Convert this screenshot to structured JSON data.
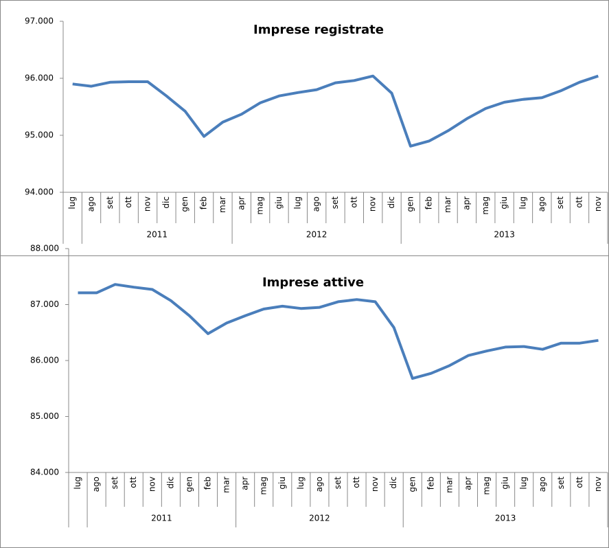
{
  "chart_data": [
    {
      "type": "line",
      "title": "Imprese registrate",
      "color": "#4a7ebb",
      "groups": [
        {
          "label": null,
          "categories": [
            "lug"
          ]
        },
        {
          "label": "2011",
          "categories": [
            "ago",
            "set",
            "ott",
            "nov",
            "dic",
            "gen",
            "feb",
            "mar"
          ]
        },
        {
          "label": "2012",
          "categories": [
            "apr",
            "mag",
            "giu",
            "lug",
            "ago",
            "set",
            "ott",
            "nov",
            "dic"
          ]
        },
        {
          "label": "2013",
          "categories": [
            "gen",
            "feb",
            "mar",
            "apr",
            "mag",
            "giu",
            "lug",
            "ago",
            "set",
            "ott",
            "nov"
          ]
        }
      ],
      "values": [
        95900,
        95860,
        95930,
        95940,
        95940,
        95690,
        95420,
        94980,
        95230,
        95370,
        95570,
        95690,
        95750,
        95800,
        95920,
        95960,
        96040,
        95740,
        94810,
        94900,
        95080,
        95290,
        95470,
        95580,
        95630,
        95660,
        95780,
        95930,
        96040
      ],
      "ylim": [
        94000,
        97000
      ],
      "yticks": [
        {
          "value": 94000,
          "label": "94.000"
        },
        {
          "value": 95000,
          "label": "95.000"
        },
        {
          "value": 96000,
          "label": "96.000"
        },
        {
          "value": 97000,
          "label": "97.000"
        }
      ]
    },
    {
      "type": "line",
      "title": "Imprese attive",
      "color": "#4a7ebb",
      "groups": [
        {
          "label": null,
          "categories": [
            "lug"
          ]
        },
        {
          "label": "2011",
          "categories": [
            "ago",
            "set",
            "ott",
            "nov",
            "dic",
            "gen",
            "feb",
            "mar"
          ]
        },
        {
          "label": "2012",
          "categories": [
            "apr",
            "mag",
            "giu",
            "lug",
            "ago",
            "set",
            "ott",
            "nov",
            "dic"
          ]
        },
        {
          "label": "2013",
          "categories": [
            "gen",
            "feb",
            "mar",
            "apr",
            "mag",
            "giu",
            "lug",
            "ago",
            "set",
            "ott",
            "nov"
          ]
        }
      ],
      "values": [
        87210,
        87210,
        87360,
        87310,
        87270,
        87070,
        86800,
        86480,
        86670,
        86800,
        86920,
        86970,
        86930,
        86950,
        87050,
        87090,
        87050,
        86590,
        85680,
        85770,
        85910,
        86090,
        86170,
        86240,
        86250,
        86200,
        86310,
        86310,
        86360
      ],
      "ylim": [
        84000,
        88000
      ],
      "yticks": [
        {
          "value": 84000,
          "label": "84.000"
        },
        {
          "value": 85000,
          "label": "85.000"
        },
        {
          "value": 86000,
          "label": "86.000"
        },
        {
          "value": 87000,
          "label": "87.000"
        },
        {
          "value": 88000,
          "label": "88.000"
        }
      ]
    }
  ]
}
